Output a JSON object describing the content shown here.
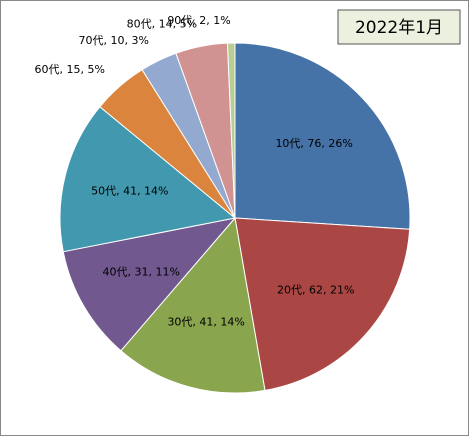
{
  "chart_data": {
    "type": "pie",
    "title": "2022年1月",
    "values": [
      76,
      62,
      41,
      31,
      41,
      15,
      10,
      14,
      2
    ],
    "value_labels": [
      "10代, 76, 26%",
      "20代, 62, 21%",
      "30代, 41, 14%",
      "40代, 31, 11%",
      "50代, 41, 14%",
      "60代, 15, 5%",
      "70代, 10, 3%",
      "80代, 14, 5%",
      "90代, 2, 1%"
    ],
    "colors": [
      "#4572a7",
      "#aa4643",
      "#89a54e",
      "#71588f",
      "#4198af",
      "#db843d",
      "#93a9cf",
      "#d19392",
      "#b9cd96"
    ]
  }
}
